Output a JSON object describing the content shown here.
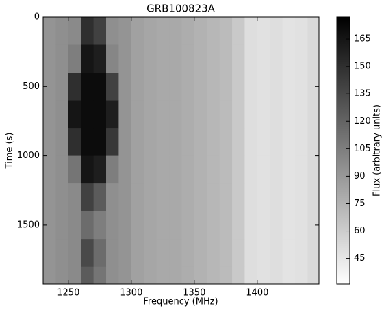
{
  "chart_data": {
    "type": "heatmap",
    "title": "GRB100823A",
    "x_label": "Frequency (MHz)",
    "y_label": "Time (s)",
    "colorbar_label": "Flux (arbitrary units)",
    "x_bins": [
      1230,
      1240,
      1250,
      1260,
      1270,
      1280,
      1290,
      1300,
      1310,
      1320,
      1330,
      1340,
      1350,
      1360,
      1370,
      1380,
      1390,
      1400,
      1410,
      1420,
      1430,
      1440,
      1449
    ],
    "y_bins": [
      0,
      200,
      400,
      600,
      800,
      1000,
      1200,
      1400,
      1600,
      1800,
      1925
    ],
    "values": [
      [
        92,
        95,
        98,
        150,
        140,
        95,
        92,
        85,
        82,
        80,
        80,
        78,
        75,
        72,
        70,
        62,
        50,
        48,
        50,
        47,
        48,
        52
      ],
      [
        92,
        95,
        105,
        165,
        160,
        100,
        92,
        85,
        82,
        80,
        80,
        78,
        75,
        72,
        70,
        62,
        50,
        48,
        50,
        47,
        48,
        52
      ],
      [
        92,
        95,
        150,
        170,
        170,
        140,
        92,
        85,
        82,
        80,
        80,
        78,
        75,
        72,
        70,
        62,
        50,
        48,
        50,
        47,
        48,
        52
      ],
      [
        92,
        95,
        165,
        170,
        170,
        160,
        92,
        85,
        82,
        80,
        80,
        78,
        75,
        72,
        70,
        62,
        50,
        48,
        50,
        47,
        48,
        52
      ],
      [
        92,
        95,
        150,
        170,
        170,
        145,
        92,
        85,
        82,
        80,
        80,
        78,
        75,
        72,
        70,
        62,
        50,
        48,
        50,
        47,
        48,
        52
      ],
      [
        92,
        95,
        110,
        165,
        160,
        105,
        92,
        85,
        82,
        80,
        80,
        78,
        75,
        72,
        70,
        62,
        50,
        48,
        50,
        47,
        48,
        52
      ],
      [
        92,
        95,
        98,
        140,
        125,
        95,
        92,
        85,
        82,
        80,
        80,
        78,
        75,
        72,
        70,
        62,
        50,
        48,
        50,
        47,
        48,
        52
      ],
      [
        92,
        95,
        98,
        115,
        105,
        95,
        92,
        85,
        82,
        80,
        80,
        78,
        75,
        72,
        70,
        62,
        50,
        48,
        50,
        47,
        48,
        52
      ],
      [
        92,
        95,
        98,
        135,
        115,
        95,
        92,
        85,
        82,
        80,
        80,
        78,
        75,
        72,
        70,
        62,
        50,
        48,
        50,
        47,
        48,
        52
      ],
      [
        92,
        95,
        98,
        125,
        110,
        95,
        92,
        85,
        82,
        80,
        80,
        78,
        75,
        72,
        70,
        62,
        50,
        48,
        50,
        47,
        48,
        52
      ]
    ],
    "xlim": [
      1230,
      1449
    ],
    "xticks": [
      1250,
      1300,
      1350,
      1400
    ],
    "ylim": [
      0,
      1925
    ],
    "yticks": [
      0,
      500,
      1000,
      1500
    ],
    "y_inverted": true,
    "clim": [
      31,
      177
    ],
    "cticks": [
      45,
      60,
      75,
      90,
      105,
      120,
      135,
      150,
      165
    ],
    "colors": [
      "#ffffff",
      "#000000"
    ]
  }
}
